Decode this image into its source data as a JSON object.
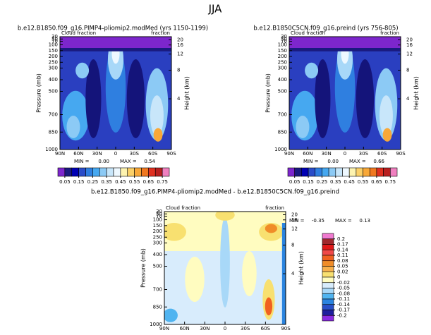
{
  "title": "JJA",
  "chart_data": [
    {
      "type": "contour",
      "title": "b.e12.B1850.f09_g16.PIMP4-pliomip2.modMed (yrs 1150-1199)",
      "left_string": "Cloud fraction",
      "right_string": "fraction",
      "ylabel": "Pressure (mb)",
      "y2label": "Height (km)",
      "xlim": [
        90,
        -90
      ],
      "xticks": [
        {
          "value": 90,
          "label": "90N"
        },
        {
          "value": 60,
          "label": "60N"
        },
        {
          "value": 30,
          "label": "30N"
        },
        0,
        {
          "value": -30,
          "label": "30S"
        },
        {
          "value": -60,
          "label": "60S"
        },
        {
          "value": -90,
          "label": "90S"
        }
      ],
      "ylim": [
        1000,
        30
      ],
      "yticks": [
        1000,
        850,
        700,
        500,
        400,
        300,
        250,
        200,
        150,
        100,
        70,
        50,
        30
      ],
      "y2lim": [
        0,
        24.5
      ],
      "y2ticks": [
        4,
        8,
        12,
        16,
        20
      ],
      "min_label": "MIN =",
      "min": {
        "value": 0,
        "label": "0.00"
      },
      "max_label": "MAX =",
      "max": 0.54,
      "colorbar": {
        "orientation": "horizontal",
        "colors": [
          "#7d26cd",
          "#1a1a80",
          "#0000b4",
          "#2a4cc8",
          "#2f7fe0",
          "#46a8f0",
          "#8ccaf5",
          "#c8e6fa",
          "#eef8ff",
          "#fdf3b0",
          "#fbd068",
          "#f8a838",
          "#f07820",
          "#e03020",
          "#b82020",
          "#f080c0"
        ],
        "ticks": [
          0.05,
          0.15,
          0.25,
          0.35,
          0.45,
          0.55,
          0.65,
          0.75
        ]
      }
    },
    {
      "type": "contour",
      "title": "b.e12.B1850C5CN.f09_g16.preind (yrs 756-805)",
      "left_string": "Cloud fraction",
      "right_string": "fraction",
      "ylabel": "Pressure (mb)",
      "y2label": "Height (km)",
      "xlim": [
        90,
        -90
      ],
      "xticks": [
        {
          "value": 90,
          "label": "90N"
        },
        {
          "value": 60,
          "label": "60N"
        },
        {
          "value": 30,
          "label": "30N"
        },
        0,
        {
          "value": -30,
          "label": "30S"
        },
        {
          "value": -60,
          "label": "60S"
        },
        {
          "value": -90,
          "label": "90S"
        }
      ],
      "ylim": [
        1000,
        30
      ],
      "yticks": [
        1000,
        850,
        700,
        500,
        400,
        300,
        250,
        200,
        150,
        100,
        70,
        50,
        30
      ],
      "y2lim": [
        0,
        24.5
      ],
      "y2ticks": [
        4,
        8,
        12,
        16,
        20
      ],
      "min_label": "MIN =",
      "min": {
        "value": 0,
        "label": "0.00"
      },
      "max_label": "MAX =",
      "max": 0.66,
      "colorbar": {
        "orientation": "horizontal",
        "colors": [
          "#7d26cd",
          "#1a1a80",
          "#0000b4",
          "#2a4cc8",
          "#2f7fe0",
          "#46a8f0",
          "#8ccaf5",
          "#c8e6fa",
          "#eef8ff",
          "#fdf3b0",
          "#fbd068",
          "#f8a838",
          "#f07820",
          "#e03020",
          "#b82020",
          "#f080c0"
        ],
        "ticks": [
          0.05,
          0.15,
          0.25,
          0.35,
          0.45,
          0.55,
          0.65,
          0.75
        ]
      }
    },
    {
      "type": "contour",
      "title": "b.e12.B1850.f09_g16.PIMP4-pliomip2.modMed - b.e12.B1850C5CN.f09_g16.preind",
      "left_string": "Cloud fraction",
      "right_string": "fraction",
      "ylabel": "Pressure (mb)",
      "y2label": "Height (km)",
      "xlim": [
        90,
        -90
      ],
      "xticks": [
        {
          "value": 90,
          "label": "90N"
        },
        {
          "value": 60,
          "label": "60N"
        },
        {
          "value": 30,
          "label": "30N"
        },
        0,
        {
          "value": -30,
          "label": "30S"
        },
        {
          "value": -60,
          "label": "60S"
        },
        {
          "value": -90,
          "label": "90S"
        }
      ],
      "ylim": [
        1000,
        30
      ],
      "yticks": [
        1000,
        850,
        700,
        500,
        400,
        300,
        250,
        200,
        150,
        100,
        70,
        50,
        30
      ],
      "y2lim": [
        0,
        24.5
      ],
      "y2ticks": [
        4,
        8,
        12,
        16,
        20
      ],
      "min_label": "MIN =",
      "min": -0.35,
      "max_label": "MAX =",
      "max": 0.13,
      "colorbar": {
        "orientation": "vertical",
        "colors": [
          "#f07ad0",
          "#a0282d",
          "#e01818",
          "#f04848",
          "#f06020",
          "#f08c28",
          "#f7b04c",
          "#f8e070",
          "#fffcc0",
          "#d8ecfc",
          "#a8d8f8",
          "#50b4f0",
          "#2a84e0",
          "#2850c8",
          "#1e1e9e",
          "#8a2be2"
        ],
        "ticks": [
          0.2,
          0.17,
          0.14,
          0.11,
          0.08,
          0.05,
          0.02,
          0,
          -0.02,
          -0.05,
          -0.08,
          -0.11,
          -0.14,
          -0.17,
          -0.2
        ]
      }
    }
  ]
}
